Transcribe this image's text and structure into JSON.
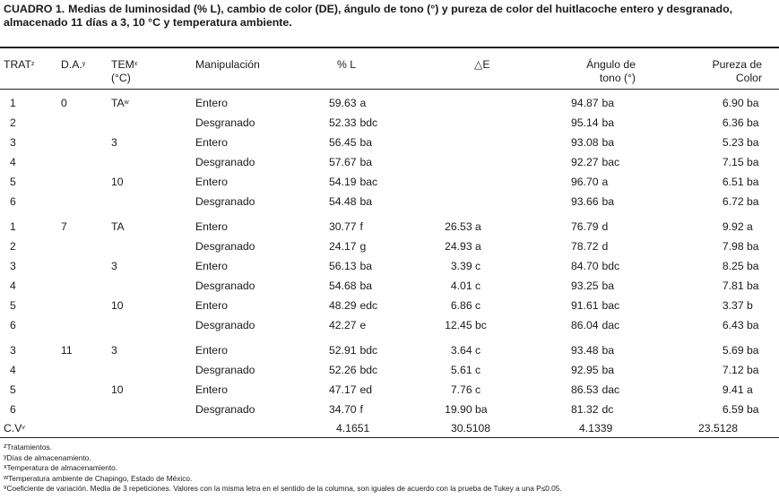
{
  "caption": {
    "label": "CUADRO 1.",
    "text": "Medias de luminosidad (% L), cambio de color (DE), ángulo de tono (°) y pureza de color del huitlacoche entero y desgranado, almacenado 11 días a 3, 10 °C y temperatura ambiente."
  },
  "headers": {
    "trat": "TRAT",
    "trat_sup": "z",
    "da": "D.A.",
    "da_sup": "y",
    "tem_line1": "TEM",
    "tem_sup": "x",
    "tem_line2": "(°C)",
    "manipulacion": "Manipulación",
    "l": "% L",
    "de": "△E",
    "angulo_line1": "Ángulo de",
    "angulo_line2": "tono (°)",
    "pureza_line1": "Pureza de",
    "pureza_line2": "Color"
  },
  "rows": [
    {
      "trat": "1",
      "da": "0",
      "tem": "TA",
      "tem_sup": "w",
      "man": "Entero",
      "l": "59.63",
      "l_sig": "a",
      "de": "",
      "de_sig": "",
      "ang": "94.87",
      "ang_sig": "ba",
      "pur": "6.90",
      "pur_sig": "ba"
    },
    {
      "trat": "2",
      "da": "",
      "tem": "",
      "tem_sup": "",
      "man": "Desgranado",
      "l": "52.33",
      "l_sig": "bdc",
      "de": "",
      "de_sig": "",
      "ang": "95.14",
      "ang_sig": "ba",
      "pur": "6.36",
      "pur_sig": "ba"
    },
    {
      "trat": "3",
      "da": "",
      "tem": "3",
      "tem_sup": "",
      "man": "Entero",
      "l": "56.45",
      "l_sig": "ba",
      "de": "",
      "de_sig": "",
      "ang": "93.08",
      "ang_sig": "ba",
      "pur": "5.23",
      "pur_sig": "ba"
    },
    {
      "trat": "4",
      "da": "",
      "tem": "",
      "tem_sup": "",
      "man": "Desgranado",
      "l": "57.67",
      "l_sig": "ba",
      "de": "",
      "de_sig": "",
      "ang": "92.27",
      "ang_sig": "bac",
      "pur": "7.15",
      "pur_sig": "ba"
    },
    {
      "trat": "5",
      "da": "",
      "tem": "10",
      "tem_sup": "",
      "man": "Entero",
      "l": "54.19",
      "l_sig": "bac",
      "de": "",
      "de_sig": "",
      "ang": "96.70",
      "ang_sig": "a",
      "pur": "6.51",
      "pur_sig": "ba"
    },
    {
      "trat": "6",
      "da": "",
      "tem": "",
      "tem_sup": "",
      "man": "Desgranado",
      "l": "54.48",
      "l_sig": "ba",
      "de": "",
      "de_sig": "",
      "ang": "93.66",
      "ang_sig": "ba",
      "pur": "6.72",
      "pur_sig": "ba"
    },
    {
      "trat": "1",
      "da": "7",
      "tem": "TA",
      "tem_sup": "",
      "man": "Entero",
      "l": "30.77",
      "l_sig": "f",
      "de": "26.53",
      "de_sig": "a",
      "ang": "76.79",
      "ang_sig": "d",
      "pur": "9.92",
      "pur_sig": "a"
    },
    {
      "trat": "2",
      "da": "",
      "tem": "",
      "tem_sup": "",
      "man": "Desgranado",
      "l": "24.17",
      "l_sig": "g",
      "de": "24.93",
      "de_sig": "a",
      "ang": "78.72",
      "ang_sig": "d",
      "pur": "7.98",
      "pur_sig": "ba"
    },
    {
      "trat": "3",
      "da": "",
      "tem": "3",
      "tem_sup": "",
      "man": "Entero",
      "l": "56.13",
      "l_sig": "ba",
      "de": "3.39",
      "de_sig": "c",
      "ang": "84.70",
      "ang_sig": "bdc",
      "pur": "8.25",
      "pur_sig": "ba"
    },
    {
      "trat": "4",
      "da": "",
      "tem": "",
      "tem_sup": "",
      "man": "Desgranado",
      "l": "54.68",
      "l_sig": "ba",
      "de": "4.01",
      "de_sig": "c",
      "ang": "93.25",
      "ang_sig": "ba",
      "pur": "7.81",
      "pur_sig": "ba"
    },
    {
      "trat": "5",
      "da": "",
      "tem": "10",
      "tem_sup": "",
      "man": "Entero",
      "l": "48.29",
      "l_sig": "edc",
      "de": "6.86",
      "de_sig": "c",
      "ang": "91.61",
      "ang_sig": "bac",
      "pur": "3.37",
      "pur_sig": "b"
    },
    {
      "trat": "6",
      "da": "",
      "tem": "",
      "tem_sup": "",
      "man": "Desgranado",
      "l": "42.27",
      "l_sig": "e",
      "de": "12.45",
      "de_sig": "bc",
      "ang": "86.04",
      "ang_sig": "dac",
      "pur": "6.43",
      "pur_sig": "ba"
    },
    {
      "trat": "3",
      "da": "11",
      "tem": "3",
      "tem_sup": "",
      "man": "Entero",
      "l": "52.91",
      "l_sig": "bdc",
      "de": "3.64",
      "de_sig": "c",
      "ang": "93.48",
      "ang_sig": "ba",
      "pur": "5.69",
      "pur_sig": "ba"
    },
    {
      "trat": "4",
      "da": "",
      "tem": "",
      "tem_sup": "",
      "man": "Desgranado",
      "l": "52.26",
      "l_sig": "bdc",
      "de": "5.61",
      "de_sig": "c",
      "ang": "92.95",
      "ang_sig": "ba",
      "pur": "7.12",
      "pur_sig": "ba"
    },
    {
      "trat": "5",
      "da": "",
      "tem": "10",
      "tem_sup": "",
      "man": "Entero",
      "l": "47.17",
      "l_sig": "ed",
      "de": "7.76",
      "de_sig": "c",
      "ang": "86.53",
      "ang_sig": "dac",
      "pur": "9.41",
      "pur_sig": "a"
    },
    {
      "trat": "6",
      "da": "",
      "tem": "",
      "tem_sup": "",
      "man": "Desgranado",
      "l": "34.70",
      "l_sig": "f",
      "de": "19.90",
      "de_sig": "ba",
      "ang": "81.32",
      "ang_sig": "dc",
      "pur": "6.59",
      "pur_sig": "ba"
    }
  ],
  "cv_row": {
    "label": "C.V",
    "label_sup": "v",
    "l": "4.1651",
    "de": "30.5108",
    "ang": "4.1339",
    "pur": "23.5128"
  },
  "footnotes": [
    {
      "sup": "z",
      "text": "Tratamientos."
    },
    {
      "sup": "y",
      "text": "Días de almacenamiento."
    },
    {
      "sup": "x",
      "text": "Temperatura de almacenamiento."
    },
    {
      "sup": "w",
      "text": "Temperatura ambiente de Chapingo, Estado de México."
    },
    {
      "sup": "v",
      "text": "Coeficiente de variación. Media de 3 repeticiones. Valores con la misma letra en el sentido de la columna, son iguales de acuerdo con la prueba de Tukey a una P≤0.05."
    }
  ]
}
